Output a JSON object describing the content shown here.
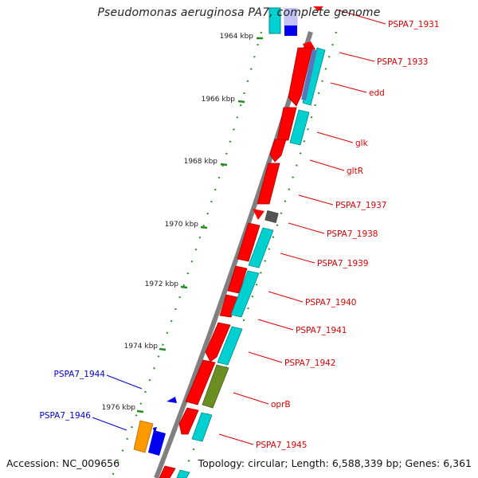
{
  "title": "Pseudomonas aeruginosa PA7, complete genome",
  "footer": {
    "accession": "Accession: NC_009656",
    "summary": "Topology: circular; Length: 6,588,339 bp; Genes: 6,361"
  },
  "colors": {
    "backbone": "#808080",
    "cds": "#ff0000",
    "feature": "#00d0d0",
    "minus_label": "#0000cc",
    "plus_label": "#dd0000",
    "tick": "#228b22",
    "orange": "#ff9900",
    "olive": "#6b8e23",
    "steel": "#5577bb"
  },
  "ticks": [
    {
      "label": "1964 kbp"
    },
    {
      "label": "1966 kbp"
    },
    {
      "label": "1968 kbp"
    },
    {
      "label": "1970 kbp"
    },
    {
      "label": "1972 kbp"
    },
    {
      "label": "1974 kbp"
    },
    {
      "label": "1976 kbp"
    }
  ],
  "plus_genes": [
    {
      "label": "PSPA7_1931"
    },
    {
      "label": "PSPA7_1933"
    },
    {
      "label": "edd"
    },
    {
      "label": "glk"
    },
    {
      "label": "gltR"
    },
    {
      "label": "PSPA7_1937"
    },
    {
      "label": "PSPA7_1938"
    },
    {
      "label": "PSPA7_1939"
    },
    {
      "label": "PSPA7_1940"
    },
    {
      "label": "PSPA7_1941"
    },
    {
      "label": "PSPA7_1942"
    },
    {
      "label": "oprB"
    },
    {
      "label": "PSPA7_1945"
    }
  ],
  "minus_genes": [
    {
      "label": "PSPA7_1944"
    },
    {
      "label": "PSPA7_1946"
    }
  ]
}
